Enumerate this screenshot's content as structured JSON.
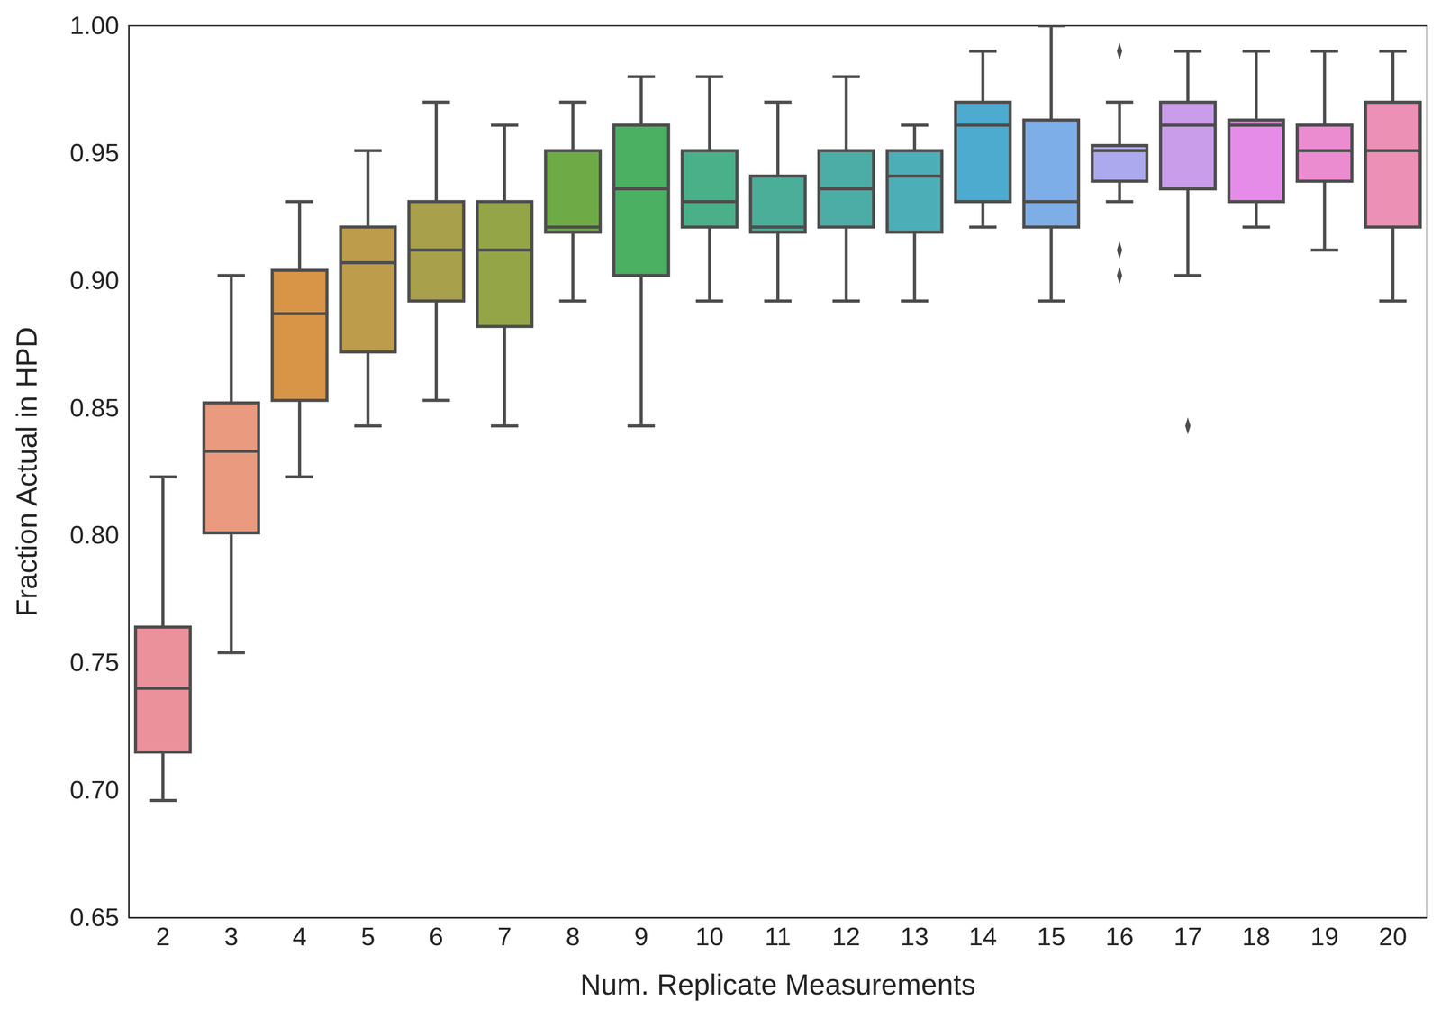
{
  "chart_data": {
    "type": "box",
    "x_label": "Num. Replicate Measurements",
    "y_label": "Fraction Actual in HPD",
    "categories": [
      2,
      3,
      4,
      5,
      6,
      7,
      8,
      9,
      10,
      11,
      12,
      13,
      14,
      15,
      16,
      17,
      18,
      19,
      20
    ],
    "boxes": [
      {
        "whisker_low": 0.696,
        "q1": 0.715,
        "median": 0.74,
        "q3": 0.764,
        "whisker_high": 0.823,
        "outliers": []
      },
      {
        "whisker_low": 0.754,
        "q1": 0.801,
        "median": 0.833,
        "q3": 0.852,
        "whisker_high": 0.902,
        "outliers": []
      },
      {
        "whisker_low": 0.823,
        "q1": 0.853,
        "median": 0.887,
        "q3": 0.904,
        "whisker_high": 0.931,
        "outliers": []
      },
      {
        "whisker_low": 0.843,
        "q1": 0.872,
        "median": 0.907,
        "q3": 0.921,
        "whisker_high": 0.951,
        "outliers": []
      },
      {
        "whisker_low": 0.853,
        "q1": 0.892,
        "median": 0.912,
        "q3": 0.931,
        "whisker_high": 0.97,
        "outliers": []
      },
      {
        "whisker_low": 0.843,
        "q1": 0.882,
        "median": 0.912,
        "q3": 0.931,
        "whisker_high": 0.961,
        "outliers": []
      },
      {
        "whisker_low": 0.892,
        "q1": 0.919,
        "median": 0.921,
        "q3": 0.951,
        "whisker_high": 0.97,
        "outliers": []
      },
      {
        "whisker_low": 0.843,
        "q1": 0.902,
        "median": 0.936,
        "q3": 0.961,
        "whisker_high": 0.98,
        "outliers": []
      },
      {
        "whisker_low": 0.892,
        "q1": 0.921,
        "median": 0.931,
        "q3": 0.951,
        "whisker_high": 0.98,
        "outliers": []
      },
      {
        "whisker_low": 0.892,
        "q1": 0.919,
        "median": 0.921,
        "q3": 0.941,
        "whisker_high": 0.97,
        "outliers": []
      },
      {
        "whisker_low": 0.892,
        "q1": 0.921,
        "median": 0.936,
        "q3": 0.951,
        "whisker_high": 0.98,
        "outliers": []
      },
      {
        "whisker_low": 0.892,
        "q1": 0.919,
        "median": 0.941,
        "q3": 0.951,
        "whisker_high": 0.961,
        "outliers": []
      },
      {
        "whisker_low": 0.921,
        "q1": 0.931,
        "median": 0.961,
        "q3": 0.97,
        "whisker_high": 0.99,
        "outliers": []
      },
      {
        "whisker_low": 0.892,
        "q1": 0.921,
        "median": 0.931,
        "q3": 0.963,
        "whisker_high": 1.0,
        "outliers": []
      },
      {
        "whisker_low": 0.931,
        "q1": 0.939,
        "median": 0.951,
        "q3": 0.953,
        "whisker_high": 0.97,
        "outliers": [
          0.99,
          0.912,
          0.902
        ]
      },
      {
        "whisker_low": 0.902,
        "q1": 0.936,
        "median": 0.961,
        "q3": 0.97,
        "whisker_high": 0.99,
        "outliers": [
          0.843
        ]
      },
      {
        "whisker_low": 0.921,
        "q1": 0.931,
        "median": 0.961,
        "q3": 0.963,
        "whisker_high": 0.99,
        "outliers": []
      },
      {
        "whisker_low": 0.912,
        "q1": 0.939,
        "median": 0.951,
        "q3": 0.961,
        "whisker_high": 0.99,
        "outliers": []
      },
      {
        "whisker_low": 0.892,
        "q1": 0.921,
        "median": 0.951,
        "q3": 0.97,
        "whisker_high": 0.99,
        "outliers": []
      }
    ],
    "colors": [
      "#eb919c",
      "#e99a7f",
      "#d89548",
      "#bd9c4c",
      "#a8a04a",
      "#94a548",
      "#6eab46",
      "#4bb062",
      "#49b08a",
      "#4aae99",
      "#4bada6",
      "#4caeb6",
      "#4dabcf",
      "#7eaee8",
      "#aca9ee",
      "#c99de9",
      "#e58ce9",
      "#eb8cd0",
      "#ec90b6"
    ],
    "ylim": [
      0.65,
      1.0
    ],
    "yticks": [
      0.65,
      {
        "value": 0.7,
        "label": "0.70"
      },
      0.75,
      {
        "value": 0.8,
        "label": "0.80"
      },
      0.85,
      {
        "value": 0.9,
        "label": "0.90"
      },
      0.95,
      {
        "value": 1.0,
        "label": "1.00"
      }
    ],
    "grid": false
  }
}
